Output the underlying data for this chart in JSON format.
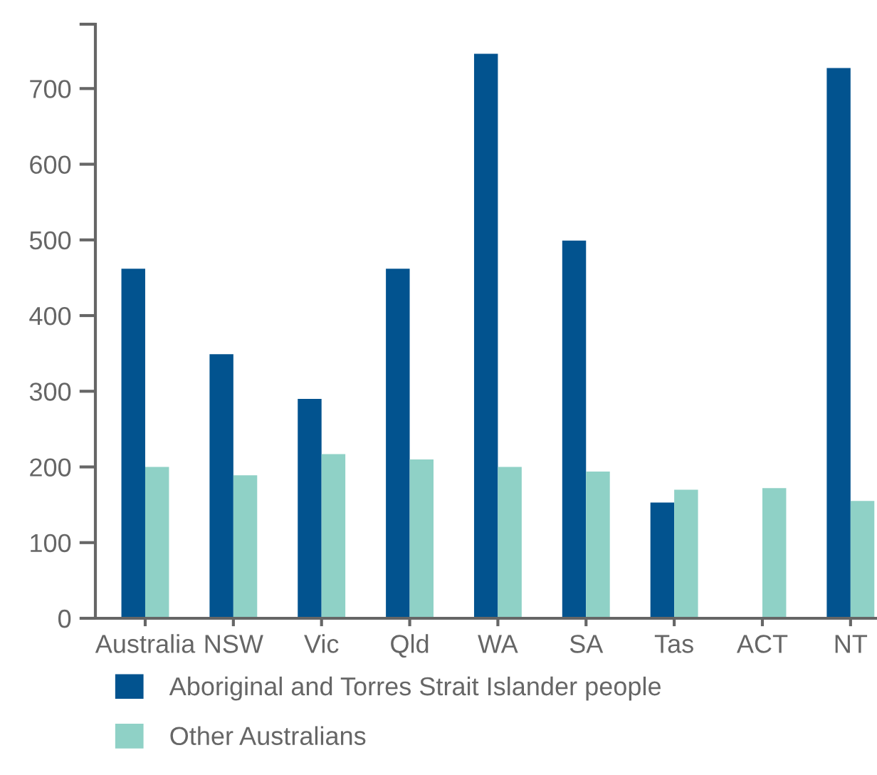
{
  "chart_data": {
    "type": "bar",
    "categories": [
      "Australia",
      "NSW",
      "Vic",
      "Qld",
      "WA",
      "SA",
      "Tas",
      "ACT",
      "NT"
    ],
    "series": [
      {
        "name": "Aboriginal and Torres Strait Islander people",
        "color": "#02538f",
        "values": [
          462,
          349,
          290,
          462,
          746,
          499,
          153,
          null,
          727
        ]
      },
      {
        "name": "Other Australians",
        "color": "#8fd1c6",
        "values": [
          200,
          189,
          217,
          210,
          200,
          194,
          170,
          172,
          155
        ]
      }
    ],
    "ylim": [
      0,
      785
    ],
    "yticks": [
      0,
      100,
      200,
      300,
      400,
      500,
      600,
      700,
      {
        "value": 785,
        "label": null
      }
    ],
    "grid": false,
    "legend": "bottom"
  }
}
